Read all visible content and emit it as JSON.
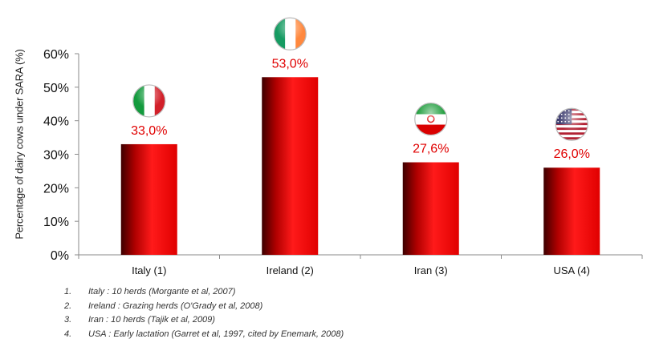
{
  "chart_data": {
    "type": "bar",
    "categories": [
      "Italy (1)",
      "Ireland (2)",
      "Iran (3)",
      "USA (4)"
    ],
    "values": [
      33.0,
      53.0,
      27.6,
      26.0
    ],
    "data_labels": [
      "33,0%",
      "53,0%",
      "27,6%",
      "26,0%"
    ],
    "ylabel": "Percentage of dairy cows under SARA (%)",
    "ylim": [
      0,
      60
    ],
    "yticks": [
      "0%",
      "10%",
      "20%",
      "30%",
      "40%",
      "50%",
      "60%"
    ],
    "ytick_values": [
      0,
      10,
      20,
      30,
      40,
      50,
      60
    ],
    "grid": false,
    "flags": [
      "italy-flag-icon",
      "ireland-flag-icon",
      "iran-flag-icon",
      "usa-flag-icon"
    ],
    "colors": {
      "bar": "#e60000",
      "bar_dark": "#4a0000",
      "label": "#e00000"
    }
  },
  "footnotes": [
    {
      "num": "1.",
      "text": "Italy : 10 herds (Morgante et al, 2007)"
    },
    {
      "num": "2.",
      "text": "Ireland : Grazing herds (O'Grady et al, 2008)"
    },
    {
      "num": "3.",
      "text": "Iran : 10 herds (Tajik et al, 2009)"
    },
    {
      "num": "4.",
      "text": "USA : Early lactation (Garret et al, 1997, cited by Enemark, 2008)"
    }
  ]
}
